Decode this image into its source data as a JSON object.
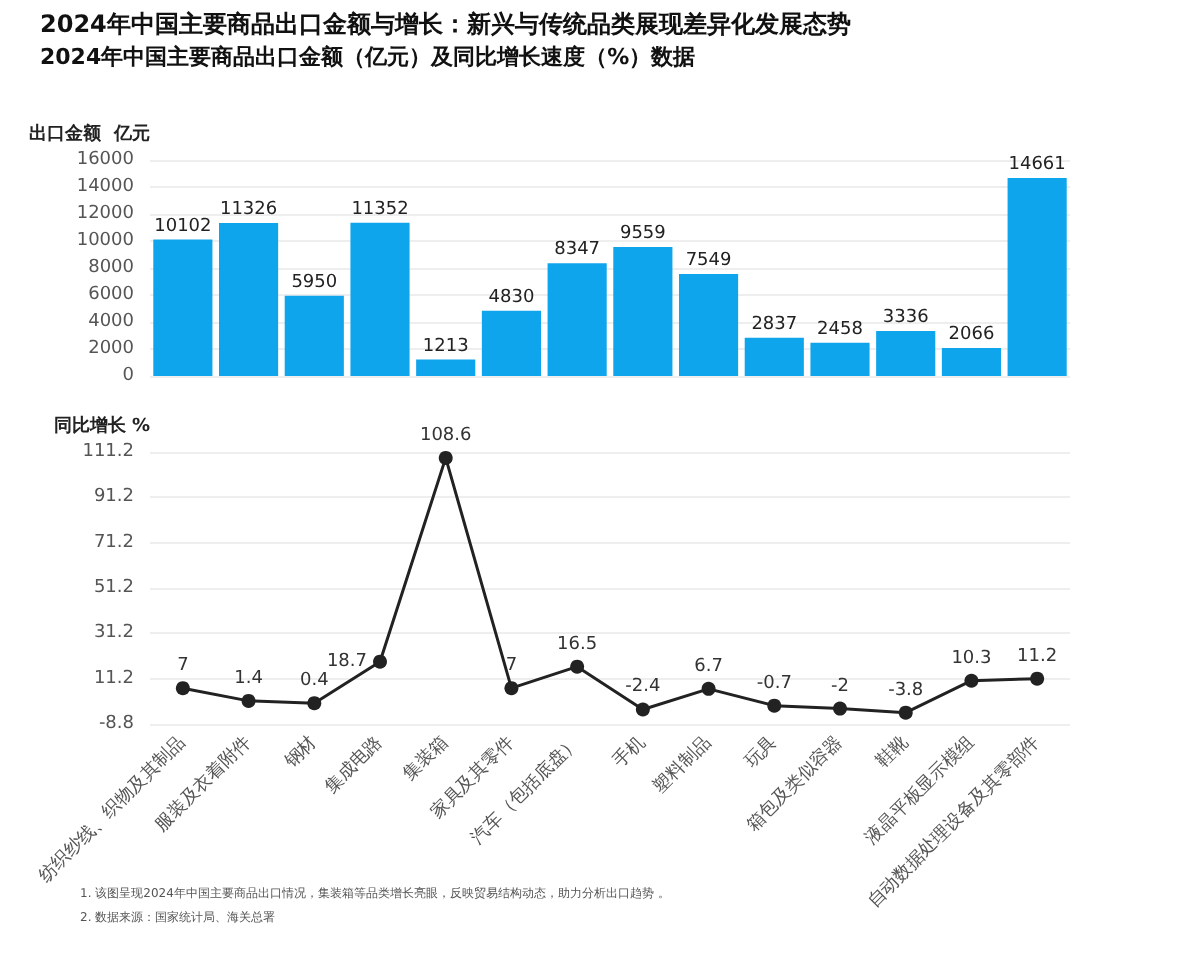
{
  "chart_data": [
    {
      "type": "bar",
      "title": "2024年中国主要商品出口金额与增长：新兴与传统品类展现差异化发展态势",
      "subtitle": "2024年中国主要商品出口金额（亿元）及同比增长速度（%）数据",
      "ylabel": "出口金额  亿元",
      "categories": [
        null,
        null,
        null,
        null,
        null,
        null,
        null,
        null,
        null,
        null,
        null,
        null,
        null,
        null
      ],
      "values": [
        10102,
        11326,
        5950,
        11352,
        1213,
        4830,
        8347,
        9559,
        7549,
        2837,
        2458,
        3336,
        2066,
        14661
      ],
      "color": "#0fa5ec",
      "ylim": [
        0,
        16000
      ],
      "yticks": [
        0,
        2000,
        4000,
        6000,
        8000,
        10000,
        12000,
        14000,
        16000
      ],
      "grid": "y",
      "data_labels": true,
      "tick_labels": "y"
    },
    {
      "type": "line",
      "ylabel": "同比增长 %",
      "categories": [
        "纺织纱线、织物及其制品",
        "服装及衣着附件",
        "钢材",
        "集成电路",
        "集装箱",
        "家具及其零件",
        "汽车（包括底盘）",
        "手机",
        "塑料制品",
        "玩具",
        "箱包及类似容器",
        "鞋靴",
        "液晶平板显示模组",
        "自动数据处理设备及其零部件"
      ],
      "values": [
        7,
        1.4,
        0.4,
        18.7,
        108.6,
        7,
        16.5,
        -2.4,
        6.7,
        -0.7,
        -2,
        -3.8,
        10.3,
        11.2
      ],
      "color": "#222222",
      "ylim": [
        -8.8,
        111.2
      ],
      "yticks": [
        -8.8,
        11.2,
        31.2,
        51.2,
        71.2,
        91.2,
        111.2
      ],
      "grid": "y",
      "data_labels": true,
      "marker": "circle",
      "line_style": "solid",
      "annotations": [
        "1. 该图呈现2024年中国主要商品出口情况，集装箱等品类增长亮眼，反映贸易结构动态，助力分析出口趋势 。",
        "2. 数据来源：国家统计局、海关总署"
      ]
    }
  ]
}
